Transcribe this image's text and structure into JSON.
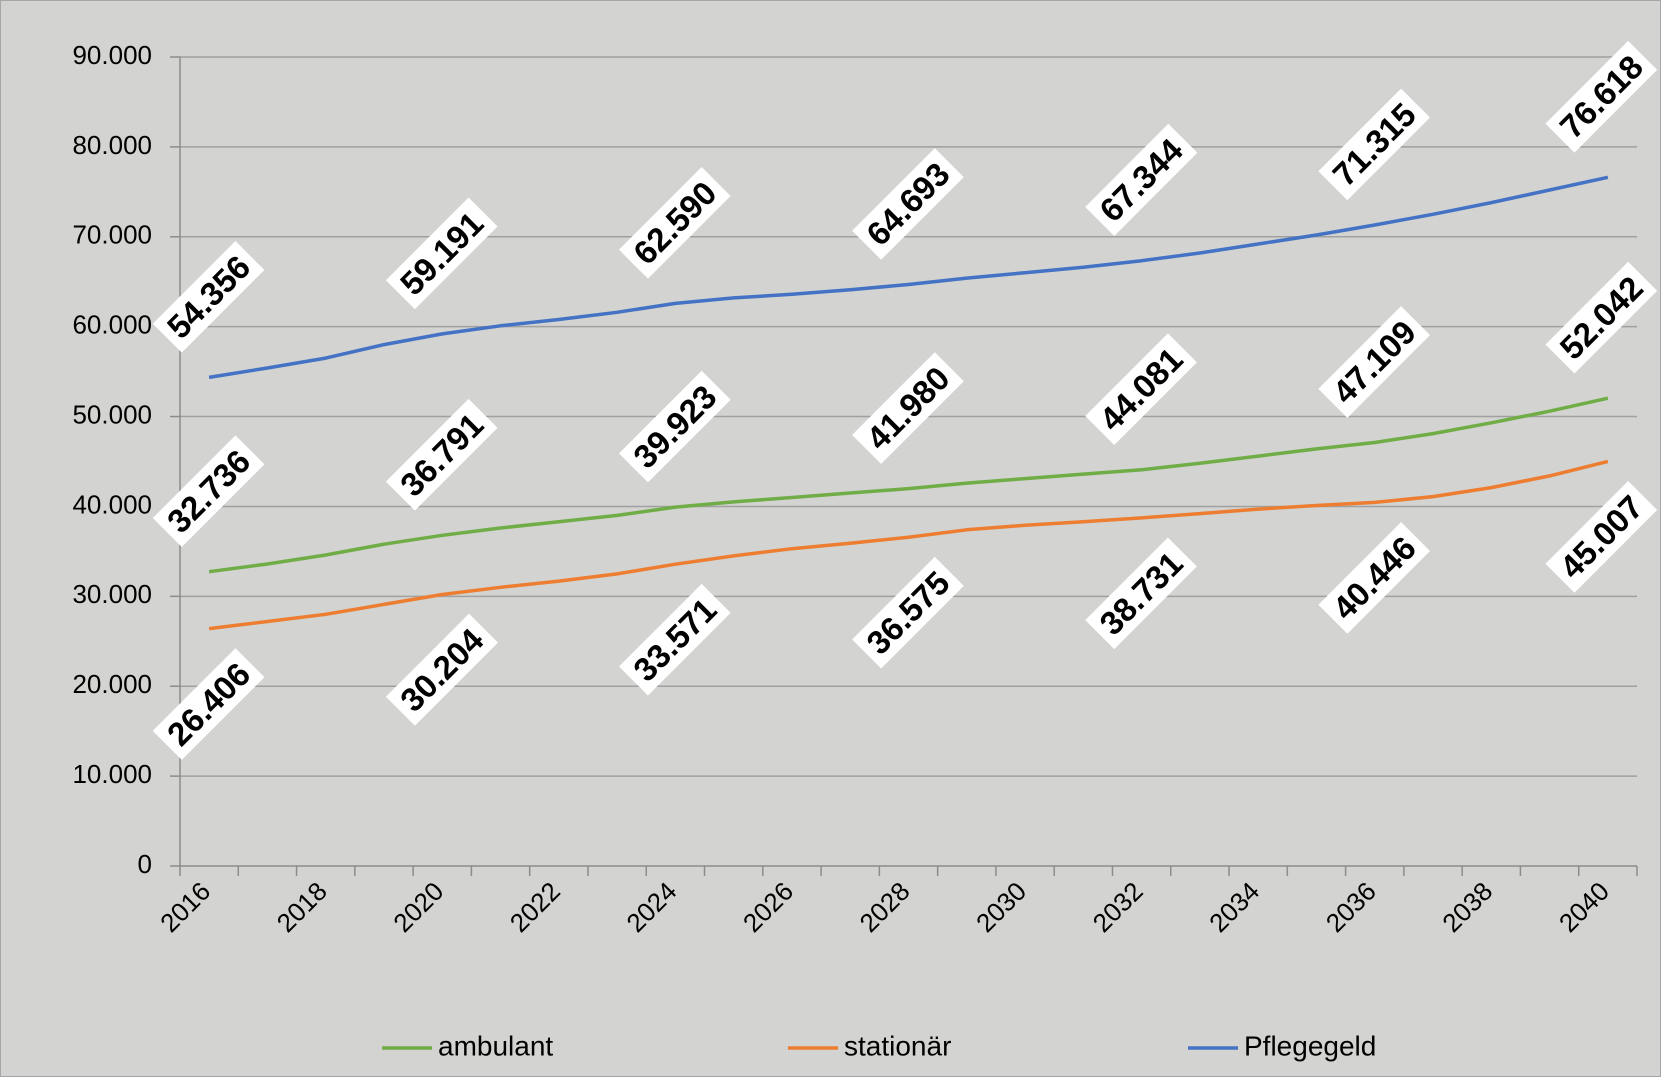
{
  "chart_data": {
    "type": "line",
    "categories": [
      "2016",
      null,
      "2018",
      null,
      "2020",
      null,
      "2022",
      null,
      "2024",
      null,
      "2026",
      null,
      "2028",
      null,
      "2030",
      null,
      "2032",
      null,
      "2034",
      null,
      "2036",
      null,
      "2038",
      null,
      "2040"
    ],
    "series": [
      {
        "name": "ambulant",
        "color": "#70ad47",
        "values": [
          32736,
          33600,
          34600,
          35800,
          36791,
          37600,
          38300,
          39000,
          39923,
          40500,
          41000,
          41500,
          41980,
          42600,
          43100,
          43600,
          44081,
          44800,
          45600,
          46400,
          47109,
          48100,
          49300,
          50600,
          52042
        ],
        "value_labels": [
          "32.736",
          null,
          null,
          null,
          "36.791",
          null,
          null,
          null,
          "39.923",
          null,
          null,
          null,
          "41.980",
          null,
          null,
          null,
          "44.081",
          null,
          null,
          null,
          "47.109",
          null,
          null,
          null,
          "52.042"
        ]
      },
      {
        "name": "stationär",
        "color": "#ed7d31",
        "values": [
          26406,
          27200,
          28000,
          29100,
          30204,
          31000,
          31700,
          32500,
          33571,
          34500,
          35300,
          35900,
          36575,
          37400,
          37900,
          38300,
          38731,
          39200,
          39700,
          40100,
          40446,
          41100,
          42100,
          43400,
          45007
        ],
        "value_labels": [
          "26.406",
          null,
          null,
          null,
          "30.204",
          null,
          null,
          null,
          "33.571",
          null,
          null,
          null,
          "36.575",
          null,
          null,
          null,
          "38.731",
          null,
          null,
          null,
          "40.446",
          null,
          null,
          null,
          "45.007"
        ]
      },
      {
        "name": "Pflegegeld",
        "color": "#4472c4",
        "values": [
          54356,
          55400,
          56500,
          58000,
          59191,
          60100,
          60800,
          61600,
          62590,
          63200,
          63600,
          64100,
          64693,
          65400,
          66000,
          66600,
          67344,
          68200,
          69200,
          70200,
          71315,
          72500,
          73800,
          75200,
          76618
        ],
        "value_labels": [
          "54.356",
          null,
          null,
          null,
          "59.191",
          null,
          null,
          null,
          "62.590",
          null,
          null,
          null,
          "64.693",
          null,
          null,
          null,
          "67.344",
          null,
          null,
          null,
          "71.315",
          null,
          null,
          null,
          "76.618"
        ]
      }
    ],
    "ylim": [
      0,
      90000
    ],
    "yticks": [
      0,
      {
        "value": 10000,
        "label": "10.000"
      },
      {
        "value": 20000,
        "label": "20.000"
      },
      {
        "value": 30000,
        "label": "30.000"
      },
      {
        "value": 40000,
        "label": "40.000"
      },
      {
        "value": 50000,
        "label": "50.000"
      },
      {
        "value": 60000,
        "label": "60.000"
      },
      {
        "value": 70000,
        "label": "70.000"
      },
      {
        "value": 80000,
        "label": "80.000"
      },
      {
        "value": 90000,
        "label": "90.000"
      }
    ],
    "grid": true,
    "legend": "bottom"
  }
}
